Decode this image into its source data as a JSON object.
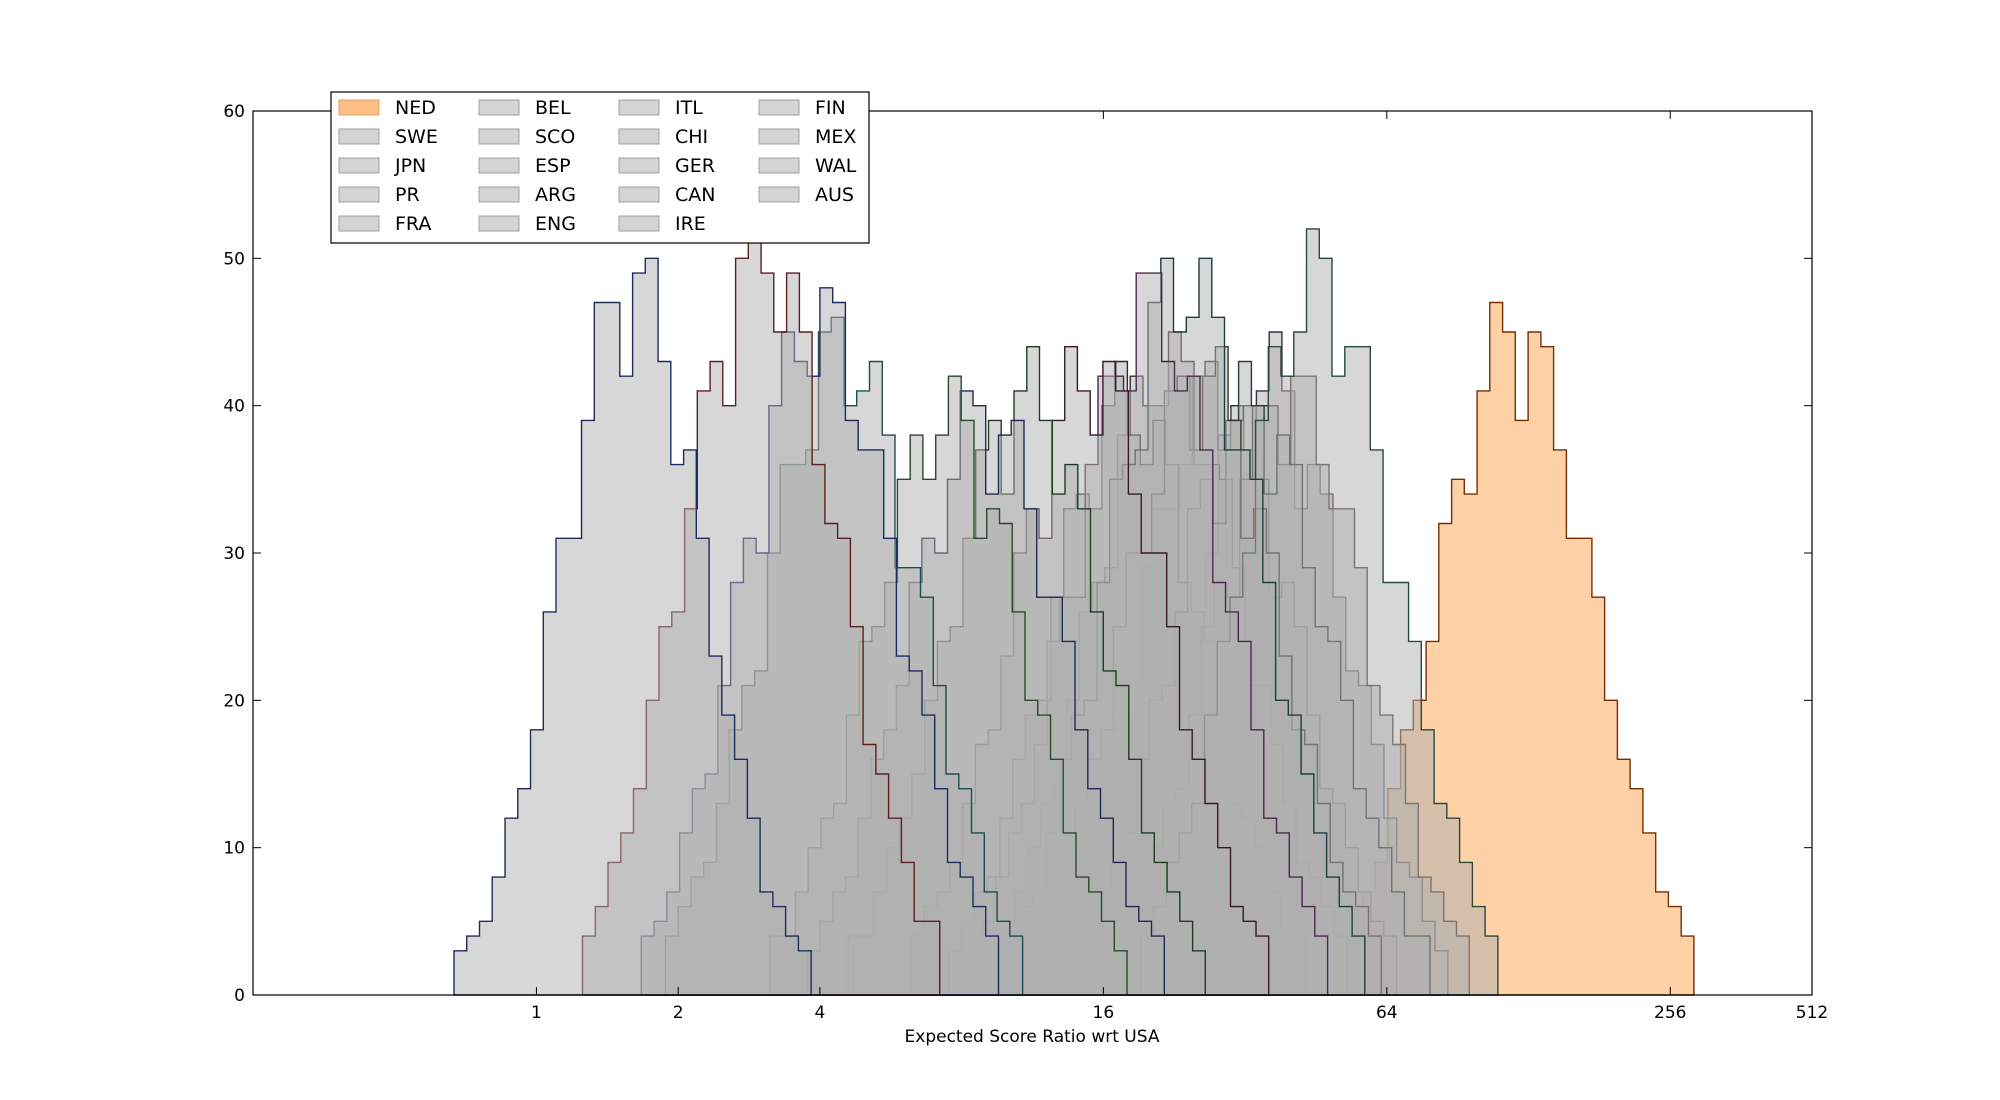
{
  "chart_data": {
    "type": "histogram",
    "title": "",
    "xlabel": "Expected Score Ratio wrt USA",
    "ylabel": "",
    "xscale": "log2",
    "xlim": [
      0.25,
      512
    ],
    "ylim": [
      0,
      60
    ],
    "x_ticks": [
      1,
      2,
      4,
      16,
      64,
      256,
      512
    ],
    "x_tick_labels": [
      "1",
      "2",
      "4",
      "16",
      "64",
      "256",
      "512"
    ],
    "y_ticks": [
      0,
      10,
      20,
      30,
      40,
      50,
      60
    ],
    "y_tick_labels": [
      "0",
      "10",
      "20",
      "30",
      "40",
      "50",
      "60"
    ],
    "grid": false,
    "legend_placement": "upper-left",
    "legend_columns": 4,
    "highlight_color": "#fdbf85",
    "background_series_color": "#b0b0b0",
    "series": [
      {
        "name": "NED",
        "center": 120,
        "spread": 0.55,
        "peak": 48,
        "highlight": true,
        "edge_color": "#7a2e00"
      },
      {
        "name": "SWE",
        "center": 36,
        "spread": 0.55,
        "peak": 45,
        "highlight": false,
        "edge_color": "#3a2a4a"
      },
      {
        "name": "JPN",
        "center": 28,
        "spread": 0.55,
        "peak": 44,
        "highlight": false,
        "edge_color": "#2a3a2a"
      },
      {
        "name": "PR",
        "center": 22,
        "spread": 0.55,
        "peak": 46,
        "highlight": false,
        "edge_color": "#3a2a2a"
      },
      {
        "name": "FRA",
        "center": 18,
        "spread": 0.55,
        "peak": 43,
        "highlight": false,
        "edge_color": "#2a2a3a"
      },
      {
        "name": "BEL",
        "center": 40,
        "spread": 0.55,
        "peak": 44,
        "highlight": false,
        "edge_color": "#4a3a2a"
      },
      {
        "name": "SCO",
        "center": 33,
        "spread": 0.55,
        "peak": 43,
        "highlight": false,
        "edge_color": "#2a3a3a"
      },
      {
        "name": "ESP",
        "center": 26,
        "spread": 0.55,
        "peak": 45,
        "highlight": false,
        "edge_color": "#3a3a2a"
      },
      {
        "name": "ARG",
        "center": 46,
        "spread": 0.55,
        "peak": 52,
        "highlight": false,
        "edge_color": "#2a4a3a"
      },
      {
        "name": "ENG",
        "center": 24,
        "spread": 0.55,
        "peak": 52,
        "highlight": false,
        "edge_color": "#1f3d3d"
      },
      {
        "name": "ITL",
        "center": 20,
        "spread": 0.55,
        "peak": 50,
        "highlight": false,
        "edge_color": "#4a2a4a"
      },
      {
        "name": "CHI",
        "center": 15,
        "spread": 0.55,
        "peak": 45,
        "highlight": false,
        "edge_color": "#3a1a2a"
      },
      {
        "name": "GER",
        "center": 11,
        "spread": 0.55,
        "peak": 44,
        "highlight": false,
        "edge_color": "#1f3d1f"
      },
      {
        "name": "CAN",
        "center": 9,
        "spread": 0.55,
        "peak": 42,
        "highlight": false,
        "edge_color": "#1f2a4d"
      },
      {
        "name": "IRE",
        "center": 7.5,
        "spread": 0.55,
        "peak": 42,
        "highlight": false,
        "edge_color": "#2a4a2a"
      },
      {
        "name": "FIN",
        "center": 4.5,
        "spread": 0.55,
        "peak": 47,
        "highlight": false,
        "edge_color": "#1f4d4d"
      },
      {
        "name": "MEX",
        "center": 4.0,
        "spread": 0.55,
        "peak": 49,
        "highlight": false,
        "edge_color": "#1f2a5d"
      },
      {
        "name": "WAL",
        "center": 3.0,
        "spread": 0.55,
        "peak": 54,
        "highlight": false,
        "edge_color": "#5d1f1f"
      },
      {
        "name": "AUS",
        "center": 1.6,
        "spread": 0.5,
        "peak": 52,
        "highlight": false,
        "edge_color": "#1f2d5d"
      }
    ]
  }
}
